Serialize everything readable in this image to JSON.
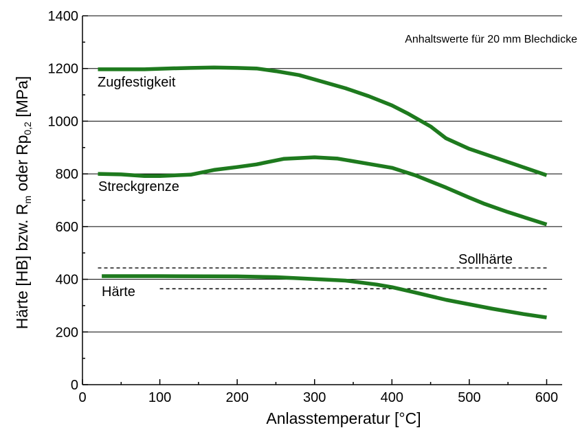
{
  "chart_data": {
    "type": "line",
    "title": "",
    "annotation": "Anhaltswerte für 20 mm Blechdicke",
    "xlabel": "Anlasstemperatur [°C]",
    "ylabel": {
      "prefix": "Härte [HB] bzw. R",
      "sub1": "m",
      "middle": " oder Rp",
      "sub2": "0,2",
      "suffix": " [MPa]"
    },
    "xlim": [
      0,
      620
    ],
    "ylim": [
      0,
      1400
    ],
    "xticks": [
      0,
      100,
      200,
      300,
      400,
      500,
      600
    ],
    "yticks": [
      0,
      200,
      400,
      600,
      800,
      1000,
      1200,
      1400
    ],
    "grid": "horizontal",
    "series_color": "#1e7a1e",
    "series": [
      {
        "name": "Zugfestigkeit",
        "points": [
          [
            20,
            1197
          ],
          [
            50,
            1197
          ],
          [
            80,
            1197
          ],
          [
            110,
            1200
          ],
          [
            140,
            1202
          ],
          [
            170,
            1204
          ],
          [
            200,
            1202
          ],
          [
            225,
            1200
          ],
          [
            250,
            1190
          ],
          [
            280,
            1175
          ],
          [
            310,
            1150
          ],
          [
            340,
            1125
          ],
          [
            370,
            1095
          ],
          [
            400,
            1060
          ],
          [
            420,
            1030
          ],
          [
            450,
            980
          ],
          [
            470,
            935
          ],
          [
            500,
            895
          ],
          [
            530,
            865
          ],
          [
            560,
            835
          ],
          [
            600,
            795
          ]
        ]
      },
      {
        "name": "Streckgrenze",
        "points": [
          [
            20,
            800
          ],
          [
            50,
            798
          ],
          [
            80,
            792
          ],
          [
            100,
            792
          ],
          [
            140,
            797
          ],
          [
            170,
            815
          ],
          [
            200,
            826
          ],
          [
            225,
            836
          ],
          [
            260,
            857
          ],
          [
            300,
            863
          ],
          [
            330,
            858
          ],
          [
            370,
            838
          ],
          [
            400,
            823
          ],
          [
            430,
            795
          ],
          [
            470,
            748
          ],
          [
            500,
            710
          ],
          [
            520,
            686
          ],
          [
            550,
            655
          ],
          [
            600,
            608
          ]
        ]
      },
      {
        "name": "Härte",
        "points": [
          [
            25,
            412
          ],
          [
            100,
            412
          ],
          [
            200,
            411
          ],
          [
            250,
            408
          ],
          [
            300,
            401
          ],
          [
            340,
            395
          ],
          [
            380,
            380
          ],
          [
            400,
            370
          ],
          [
            430,
            350
          ],
          [
            470,
            322
          ],
          [
            500,
            305
          ],
          [
            530,
            288
          ],
          [
            570,
            268
          ],
          [
            600,
            255
          ]
        ]
      }
    ],
    "reference_lines": [
      {
        "name": "Sollhärte",
        "x": [
          20,
          600
        ],
        "y": 443
      },
      {
        "name": "",
        "x": [
          100,
          600
        ],
        "y": 364
      }
    ],
    "series_labels": {
      "zug": "Zugfestigkeit",
      "streck": "Streckgrenze",
      "haerte": "Härte",
      "soll": "Sollhärte"
    }
  }
}
